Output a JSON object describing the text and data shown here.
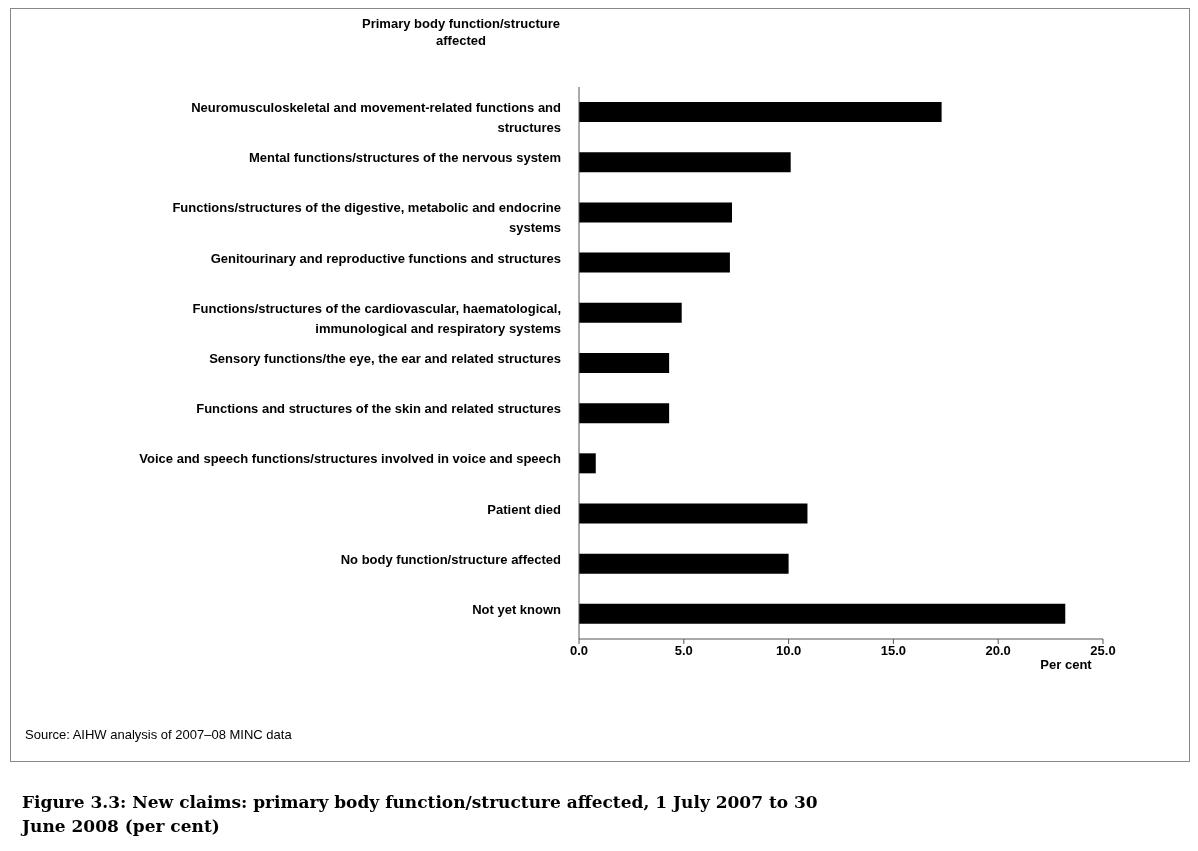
{
  "chart_data": {
    "type": "bar",
    "orientation": "horizontal",
    "title": "Figure 3.3: New claims: primary body function/structure affected, 1 July 2007 to 30 June 2008 (per cent)",
    "ylabel": "Primary body function/structure affected",
    "xlabel": "Per cent",
    "categories": [
      "Neuromusculoskeletal and movement-related functions and structures",
      "Mental functions/structures of the nervous system",
      "Functions/structures of the digestive, metabolic and endocrine systems",
      "Genitourinary and reproductive functions and structures",
      "Functions/structures of the cardiovascular, haematological, immunological and respiratory systems",
      "Sensory functions/the eye, the ear and related structures",
      "Functions and structures of the skin and related structures",
      "Voice and speech functions/structures involved in voice and speech",
      "Patient died",
      "No body function/structure affected",
      "Not yet known"
    ],
    "values": [
      17.3,
      10.1,
      7.3,
      7.2,
      4.9,
      4.3,
      4.3,
      0.8,
      10.9,
      10.0,
      23.2
    ],
    "color": "#000000",
    "xlim": [
      0,
      25
    ],
    "xticks": [
      {
        "value": 0,
        "label": "0.0"
      },
      {
        "value": 5,
        "label": "5.0"
      },
      {
        "value": 10,
        "label": "10.0"
      },
      {
        "value": 15,
        "label": "15.0"
      },
      {
        "value": 20,
        "label": "20.0"
      },
      {
        "value": 25,
        "label": "25.0"
      }
    ],
    "grid": false,
    "legend": false,
    "annotations": [
      "Source: AIHW analysis of 2007–08 MINC data"
    ]
  }
}
